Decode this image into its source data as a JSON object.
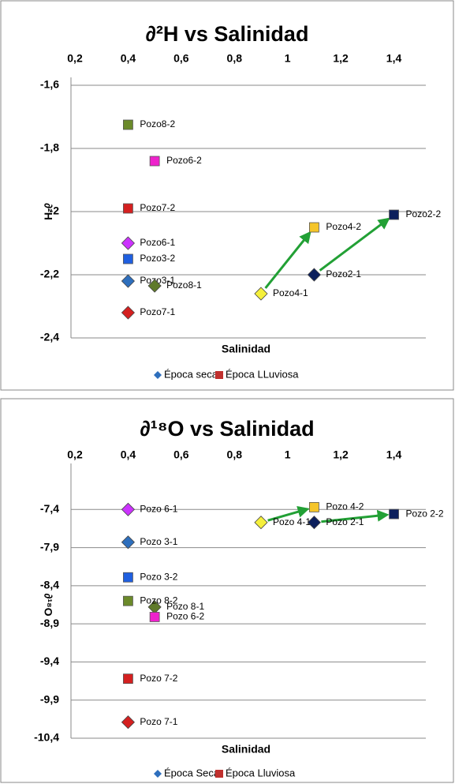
{
  "chart_data": [
    {
      "type": "scatter",
      "title": "∂²H vs Salinidad",
      "x_label": "Salinidad",
      "y_label": "∂²H",
      "xlim": [
        0.2,
        1.52
      ],
      "ylim": [
        -2.4,
        -1.6
      ],
      "grid": true,
      "legend": "bottom",
      "xticks": [
        {
          "value": 0.2,
          "label": "0,2"
        },
        {
          "value": 0.4,
          "label": "0,4"
        },
        {
          "value": 0.6,
          "label": "0,6"
        },
        {
          "value": 0.8,
          "label": "0,8"
        },
        1,
        {
          "value": 1.2,
          "label": "1,2"
        },
        {
          "value": 1.4,
          "label": "1,4"
        }
      ],
      "yticks": [
        {
          "value": -1.6,
          "label": "-1,6"
        },
        {
          "value": -1.8,
          "label": "-1,8"
        },
        -2,
        {
          "value": -2.2,
          "label": "-2,2"
        },
        {
          "value": -2.4,
          "label": "-2,4"
        }
      ],
      "series": [
        {
          "name": "Época seca",
          "color": "#2e6fbd",
          "marker": "diamond",
          "labels": [
            "Pozo3-1",
            "Pozo8-1",
            "Pozo7-1",
            "Pozo6-1",
            "Pozo4-1",
            "Pozo2-1"
          ],
          "x": [
            0.4,
            0.5,
            0.4,
            0.4,
            0.9,
            1.1
          ],
          "values": [
            -2.22,
            -2.235,
            -2.32,
            -2.1,
            -2.26,
            -2.2
          ],
          "colors": [
            "#2e6fbd",
            "#5f7a2a",
            "#d42020",
            "#cc33ff",
            "#f5f03c",
            "#0c1f5c"
          ]
        },
        {
          "name": "Época LLuviosa",
          "color": "#c0302e",
          "marker": "square",
          "labels": [
            "Pozo8-2",
            "Pozo6-2",
            "Pozo7-2",
            "Pozo3-2",
            "Pozo4-2",
            "Pozo2-2"
          ],
          "x": [
            0.4,
            0.5,
            0.4,
            0.4,
            1.1,
            1.4
          ],
          "values": [
            -1.725,
            -1.84,
            -1.99,
            -2.15,
            -2.05,
            -2.01
          ],
          "colors": [
            "#6b8a2a",
            "#ee22cc",
            "#d42020",
            "#1f5fe0",
            "#f5c52a",
            "#0c1f5c"
          ]
        }
      ]
    },
    {
      "type": "scatter",
      "title": "∂¹⁸O vs Salinidad",
      "x_label": "Salinidad",
      "y_label": "∂¹⁸O",
      "xlim": [
        0.2,
        1.52
      ],
      "ylim": [
        -10.4,
        -6.9
      ],
      "grid": true,
      "legend": "bottom",
      "xticks": [
        {
          "value": 0.2,
          "label": "0,2"
        },
        {
          "value": 0.4,
          "label": "0,4"
        },
        {
          "value": 0.6,
          "label": "0,6"
        },
        {
          "value": 0.8,
          "label": "0,8"
        },
        1,
        {
          "value": 1.2,
          "label": "1,2"
        },
        {
          "value": 1.4,
          "label": "1,4"
        }
      ],
      "yticks": [
        {
          "value": -7.4,
          "label": "-7,4"
        },
        {
          "value": -7.9,
          "label": "-7,9"
        },
        {
          "value": -8.4,
          "label": "-8,4"
        },
        {
          "value": -8.9,
          "label": "-8,9"
        },
        {
          "value": -9.4,
          "label": "-9,4"
        },
        {
          "value": -9.9,
          "label": "-9,9"
        },
        {
          "value": -10.4,
          "label": "-10,4"
        }
      ],
      "series": [
        {
          "name": "Época Seca",
          "color": "#2e6fbd",
          "marker": "diamond",
          "labels": [
            "Pozo 3-1",
            "Pozo 8-1",
            "Pozo 7-1",
            "Pozo 6-1",
            "Pozo 4-1",
            "Pozo 2-1"
          ],
          "x": [
            0.4,
            0.5,
            0.4,
            0.4,
            0.9,
            1.1
          ],
          "values": [
            -7.83,
            -8.68,
            -10.19,
            -7.4,
            -7.57,
            -7.57
          ],
          "colors": [
            "#2e6fbd",
            "#5f7a2a",
            "#d42020",
            "#cc33ff",
            "#f5f03c",
            "#0c1f5c"
          ]
        },
        {
          "name": "Época Lluviosa",
          "color": "#c0302e",
          "marker": "square",
          "labels": [
            "Pozo 8-2",
            "Pozo 6-2",
            "Pozo 7-2",
            "Pozo 3-2",
            "Pozo 4-2",
            "Pozo 2-2"
          ],
          "x": [
            0.4,
            0.5,
            0.4,
            0.4,
            1.1,
            1.4
          ],
          "values": [
            -8.6,
            -8.81,
            -9.62,
            -8.29,
            -7.37,
            -7.46
          ],
          "colors": [
            "#6b8a2a",
            "#ee22cc",
            "#d42020",
            "#1f5fe0",
            "#f5c52a",
            "#0c1f5c"
          ]
        }
      ]
    }
  ]
}
